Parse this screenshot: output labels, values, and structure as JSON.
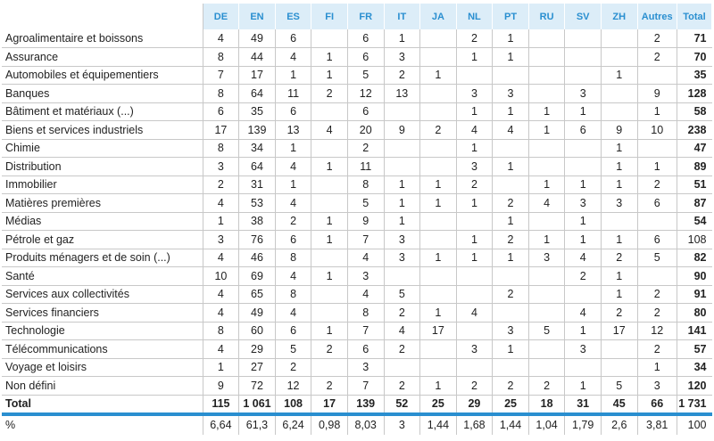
{
  "table": {
    "columns": [
      "DE",
      "EN",
      "ES",
      "FI",
      "FR",
      "IT",
      "JA",
      "NL",
      "PT",
      "RU",
      "SV",
      "ZH",
      "Autres",
      "Total"
    ],
    "rows": [
      {
        "label": "Agroalimentaire et boissons",
        "values": [
          "4",
          "49",
          "6",
          "",
          "6",
          "1",
          "",
          "2",
          "1",
          "",
          "",
          "",
          "2",
          "71"
        ]
      },
      {
        "label": "Assurance",
        "values": [
          "8",
          "44",
          "4",
          "1",
          "6",
          "3",
          "",
          "1",
          "1",
          "",
          "",
          "",
          "2",
          "70"
        ]
      },
      {
        "label": "Automobiles et équipementiers",
        "values": [
          "7",
          "17",
          "1",
          "1",
          "5",
          "2",
          "1",
          "",
          "",
          "",
          "",
          "1",
          "",
          "35"
        ]
      },
      {
        "label": "Banques",
        "values": [
          "8",
          "64",
          "11",
          "2",
          "12",
          "13",
          "",
          "3",
          "3",
          "",
          "3",
          "",
          "9",
          "128"
        ]
      },
      {
        "label": "Bâtiment et matériaux (...)",
        "values": [
          "6",
          "35",
          "6",
          "",
          "6",
          "",
          "",
          "1",
          "1",
          "1",
          "1",
          "",
          "1",
          "58"
        ]
      },
      {
        "label": "Biens et services industriels",
        "values": [
          "17",
          "139",
          "13",
          "4",
          "20",
          "9",
          "2",
          "4",
          "4",
          "1",
          "6",
          "9",
          "10",
          "238"
        ]
      },
      {
        "label": "Chimie",
        "values": [
          "8",
          "34",
          "1",
          "",
          "2",
          "",
          "",
          "1",
          "",
          "",
          "",
          "1",
          "",
          "47"
        ]
      },
      {
        "label": "Distribution",
        "values": [
          "3",
          "64",
          "4",
          "1",
          "11",
          "",
          "",
          "3",
          "1",
          "",
          "",
          "1",
          "1",
          "89"
        ]
      },
      {
        "label": "Immobilier",
        "values": [
          "2",
          "31",
          "1",
          "",
          "8",
          "1",
          "1",
          "2",
          "",
          "1",
          "1",
          "1",
          "2",
          "51"
        ]
      },
      {
        "label": "Matières premières",
        "values": [
          "4",
          "53",
          "4",
          "",
          "5",
          "1",
          "1",
          "1",
          "2",
          "4",
          "3",
          "3",
          "6",
          "87"
        ]
      },
      {
        "label": "Médias",
        "values": [
          "1",
          "38",
          "2",
          "1",
          "9",
          "1",
          "",
          "",
          "1",
          "",
          "1",
          "",
          "",
          "54"
        ]
      },
      {
        "label": "Pétrole et gaz",
        "values": [
          "3",
          "76",
          "6",
          "1",
          "7",
          "3",
          "",
          "1",
          "2",
          "1",
          "1",
          "1",
          "6",
          "108"
        ]
      },
      {
        "label": "Produits ménagers et de soin (...)",
        "values": [
          "4",
          "46",
          "8",
          "",
          "4",
          "3",
          "1",
          "1",
          "1",
          "3",
          "4",
          "2",
          "5",
          "82"
        ]
      },
      {
        "label": "Santé",
        "values": [
          "10",
          "69",
          "4",
          "1",
          "3",
          "",
          "",
          "",
          "",
          "",
          "2",
          "1",
          "",
          "90"
        ]
      },
      {
        "label": "Services aux collectivités",
        "values": [
          "4",
          "65",
          "8",
          "",
          "4",
          "5",
          "",
          "",
          "2",
          "",
          "",
          "1",
          "2",
          "91"
        ]
      },
      {
        "label": "Services financiers",
        "values": [
          "4",
          "49",
          "4",
          "",
          "8",
          "2",
          "1",
          "4",
          "",
          "",
          "4",
          "2",
          "2",
          "80"
        ]
      },
      {
        "label": "Technologie",
        "values": [
          "8",
          "60",
          "6",
          "1",
          "7",
          "4",
          "17",
          "",
          "3",
          "5",
          "1",
          "17",
          "12",
          "141"
        ]
      },
      {
        "label": "Télécommunications",
        "values": [
          "4",
          "29",
          "5",
          "2",
          "6",
          "2",
          "",
          "3",
          "1",
          "",
          "3",
          "",
          "2",
          "57"
        ]
      },
      {
        "label": "Voyage et loisirs",
        "values": [
          "1",
          "27",
          "2",
          "",
          "3",
          "",
          "",
          "",
          "",
          "",
          "",
          "",
          "1",
          "34"
        ]
      },
      {
        "label": "Non défini",
        "values": [
          "9",
          "72",
          "12",
          "2",
          "7",
          "2",
          "1",
          "2",
          "2",
          "2",
          "1",
          "5",
          "3",
          "120"
        ]
      }
    ],
    "total": {
      "label": "Total",
      "values": [
        "115",
        "1 061",
        "108",
        "17",
        "139",
        "52",
        "25",
        "29",
        "25",
        "18",
        "31",
        "45",
        "66",
        "1 731"
      ]
    },
    "percent": {
      "label": "%",
      "values": [
        "6,64",
        "61,3",
        "6,24",
        "0,98",
        "8,03",
        "3",
        "1,44",
        "1,68",
        "1,44",
        "1,04",
        "1,79",
        "2,6",
        "3,81",
        "100"
      ]
    }
  }
}
